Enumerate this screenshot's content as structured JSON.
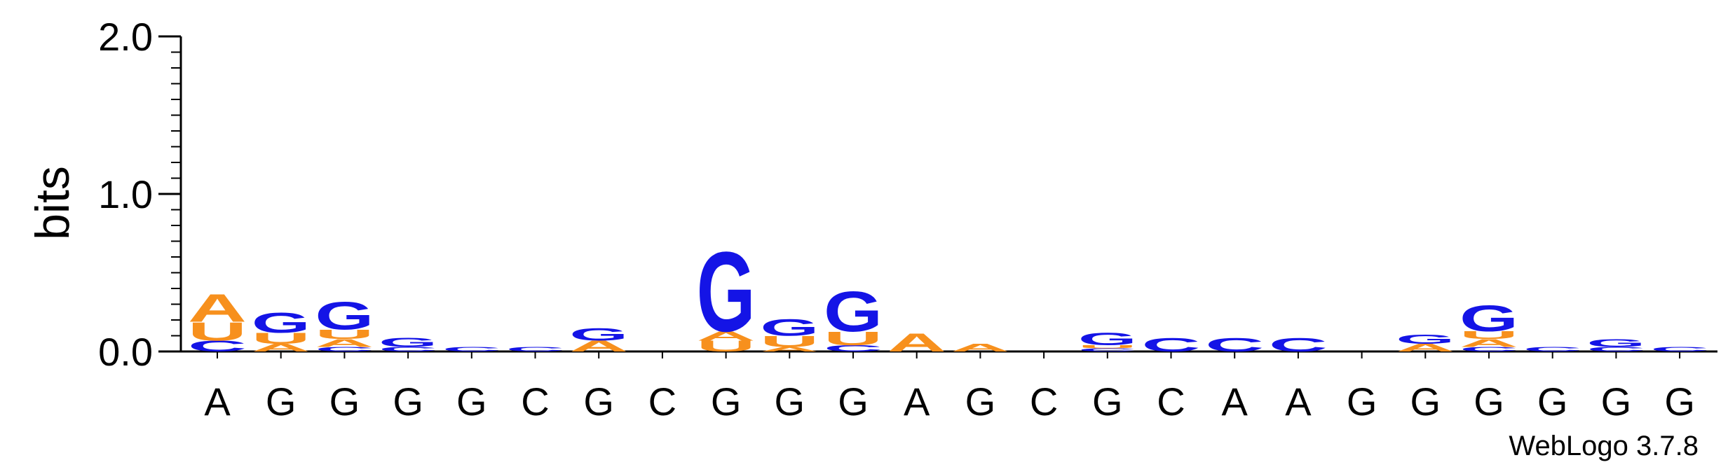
{
  "chart_data": {
    "type": "sequence-logo",
    "ylabel": "bits",
    "ylim": [
      0,
      2.0
    ],
    "yticks": [
      "0.0",
      "1.0",
      "2.0"
    ],
    "credit": "WebLogo 3.7.8",
    "colors": {
      "A": "#f7901d",
      "U": "#f7901d",
      "G": "#1414e6",
      "C": "#1414e6"
    },
    "positions": [
      {
        "label": "A",
        "stack": [
          {
            "letter": "C",
            "bits": 0.07
          },
          {
            "letter": "U",
            "bits": 0.12
          },
          {
            "letter": "A",
            "bits": 0.18
          }
        ]
      },
      {
        "label": "G",
        "stack": [
          {
            "letter": "A",
            "bits": 0.05
          },
          {
            "letter": "U",
            "bits": 0.07
          },
          {
            "letter": "G",
            "bits": 0.13
          }
        ]
      },
      {
        "label": "G",
        "stack": [
          {
            "letter": "C",
            "bits": 0.03
          },
          {
            "letter": "A",
            "bits": 0.05
          },
          {
            "letter": "U",
            "bits": 0.06
          },
          {
            "letter": "G",
            "bits": 0.18
          }
        ]
      },
      {
        "label": "G",
        "stack": [
          {
            "letter": "C",
            "bits": 0.03
          },
          {
            "letter": "G",
            "bits": 0.06
          }
        ]
      },
      {
        "label": "G",
        "stack": [
          {
            "letter": "C",
            "bits": 0.03
          }
        ]
      },
      {
        "label": "C",
        "stack": [
          {
            "letter": "C",
            "bits": 0.03
          }
        ]
      },
      {
        "label": "G",
        "stack": [
          {
            "letter": "A",
            "bits": 0.07
          },
          {
            "letter": "G",
            "bits": 0.08
          }
        ]
      },
      {
        "label": "C",
        "stack": []
      },
      {
        "label": "G",
        "stack": [
          {
            "letter": "U",
            "bits": 0.07
          },
          {
            "letter": "A",
            "bits": 0.06
          },
          {
            "letter": "G",
            "bits": 0.52
          }
        ]
      },
      {
        "label": "G",
        "stack": [
          {
            "letter": "A",
            "bits": 0.03
          },
          {
            "letter": "U",
            "bits": 0.07
          },
          {
            "letter": "G",
            "bits": 0.11
          }
        ]
      },
      {
        "label": "G",
        "stack": [
          {
            "letter": "C",
            "bits": 0.04
          },
          {
            "letter": "U",
            "bits": 0.09
          },
          {
            "letter": "G",
            "bits": 0.26
          }
        ]
      },
      {
        "label": "A",
        "stack": [
          {
            "letter": "A",
            "bits": 0.12
          }
        ]
      },
      {
        "label": "G",
        "stack": [
          {
            "letter": "A",
            "bits": 0.05
          }
        ]
      },
      {
        "label": "C",
        "stack": []
      },
      {
        "label": "G",
        "stack": [
          {
            "letter": "C",
            "bits": 0.02
          },
          {
            "letter": "U",
            "bits": 0.02
          },
          {
            "letter": "G",
            "bits": 0.08
          }
        ]
      },
      {
        "label": "C",
        "stack": [
          {
            "letter": "C",
            "bits": 0.09
          }
        ]
      },
      {
        "label": "A",
        "stack": [
          {
            "letter": "C",
            "bits": 0.09
          }
        ]
      },
      {
        "label": "A",
        "stack": [
          {
            "letter": "C",
            "bits": 0.09
          }
        ]
      },
      {
        "label": "G",
        "stack": []
      },
      {
        "label": "G",
        "stack": [
          {
            "letter": "A",
            "bits": 0.05
          },
          {
            "letter": "G",
            "bits": 0.06
          }
        ]
      },
      {
        "label": "G",
        "stack": [
          {
            "letter": "C",
            "bits": 0.03
          },
          {
            "letter": "A",
            "bits": 0.05
          },
          {
            "letter": "U",
            "bits": 0.05
          },
          {
            "letter": "G",
            "bits": 0.17
          }
        ]
      },
      {
        "label": "G",
        "stack": [
          {
            "letter": "C",
            "bits": 0.03
          }
        ]
      },
      {
        "label": "G",
        "stack": [
          {
            "letter": "C",
            "bits": 0.03
          },
          {
            "letter": "G",
            "bits": 0.05
          }
        ]
      },
      {
        "label": "G",
        "stack": [
          {
            "letter": "C",
            "bits": 0.03
          }
        ]
      }
    ]
  }
}
